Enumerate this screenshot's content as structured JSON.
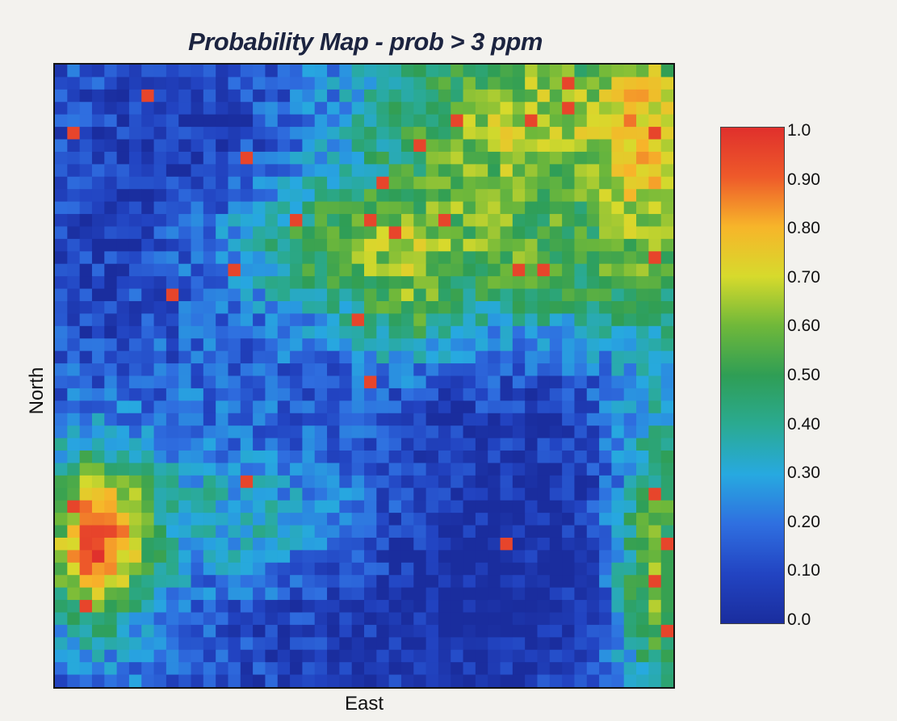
{
  "chart_data": {
    "type": "heatmap",
    "title": "Probability Map - prob > 3 ppm",
    "xlabel": "East",
    "ylabel": "North",
    "grid_size": [
      50,
      50
    ],
    "value_range": [
      0.0,
      1.0
    ],
    "colorbar": {
      "ticks": [
        "0.0",
        "0.10",
        "0.20",
        "0.30",
        "0.40",
        "0.50",
        "0.60",
        "0.70",
        "0.80",
        "0.90",
        "1.0"
      ],
      "colors": [
        "#1a2d9e",
        "#2244c2",
        "#2f6fe0",
        "#27a9e0",
        "#2aaa92",
        "#2f9e55",
        "#6fb83a",
        "#d7da2c",
        "#f7b52a",
        "#ee5a2a",
        "#e0302c"
      ]
    },
    "high_probability_cells": [
      {
        "col": 7,
        "row": 2,
        "value": 0.95
      },
      {
        "col": 1,
        "row": 5,
        "value": 0.95
      },
      {
        "col": 15,
        "row": 7,
        "value": 0.95
      },
      {
        "col": 41,
        "row": 1,
        "value": 0.95
      },
      {
        "col": 41,
        "row": 3,
        "value": 0.95
      },
      {
        "col": 32,
        "row": 4,
        "value": 0.95
      },
      {
        "col": 38,
        "row": 4,
        "value": 0.95
      },
      {
        "col": 29,
        "row": 6,
        "value": 0.95
      },
      {
        "col": 48,
        "row": 5,
        "value": 0.95
      },
      {
        "col": 26,
        "row": 9,
        "value": 0.95
      },
      {
        "col": 19,
        "row": 12,
        "value": 0.95
      },
      {
        "col": 25,
        "row": 12,
        "value": 0.95
      },
      {
        "col": 31,
        "row": 12,
        "value": 0.95
      },
      {
        "col": 27,
        "row": 13,
        "value": 0.95
      },
      {
        "col": 14,
        "row": 16,
        "value": 0.95
      },
      {
        "col": 9,
        "row": 18,
        "value": 0.95
      },
      {
        "col": 37,
        "row": 16,
        "value": 0.95
      },
      {
        "col": 39,
        "row": 16,
        "value": 0.95
      },
      {
        "col": 48,
        "row": 15,
        "value": 0.95
      },
      {
        "col": 24,
        "row": 20,
        "value": 0.95
      },
      {
        "col": 25,
        "row": 25,
        "value": 0.95
      },
      {
        "col": 15,
        "row": 33,
        "value": 0.95
      },
      {
        "col": 1,
        "row": 35,
        "value": 0.95
      },
      {
        "col": 2,
        "row": 37,
        "value": 0.95
      },
      {
        "col": 36,
        "row": 38,
        "value": 0.95
      },
      {
        "col": 48,
        "row": 34,
        "value": 0.95
      },
      {
        "col": 49,
        "row": 38,
        "value": 0.95
      },
      {
        "col": 48,
        "row": 41,
        "value": 0.95
      },
      {
        "col": 2,
        "row": 43,
        "value": 0.95
      },
      {
        "col": 49,
        "row": 45,
        "value": 0.95
      }
    ],
    "regional_patterns": [
      {
        "region": "top-right",
        "level": 0.6
      },
      {
        "region": "north-central band",
        "level": 0.55
      },
      {
        "region": "lower-left cluster",
        "level": 0.85
      },
      {
        "region": "right edge",
        "level": 0.6
      },
      {
        "region": "upper-left",
        "level": 0.12
      },
      {
        "region": "south-central",
        "level": 0.1
      }
    ]
  }
}
